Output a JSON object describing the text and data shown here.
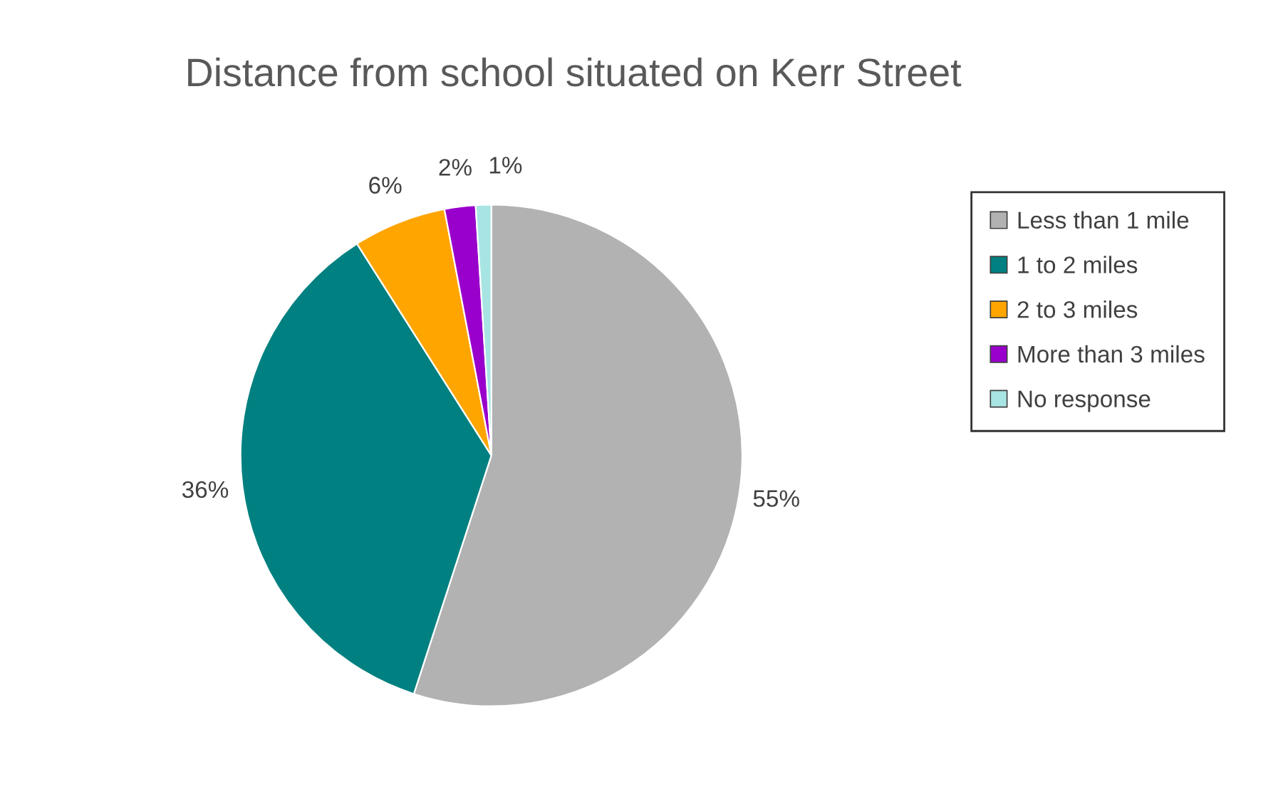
{
  "chart_data": {
    "type": "pie",
    "title": "Distance from school situated on Kerr Street",
    "categories": [
      "Less than 1 mile",
      "1 to 2 miles",
      "2 to 3 miles",
      "More than 3 miles",
      "No response"
    ],
    "values": [
      55,
      36,
      6,
      2,
      1
    ],
    "colors": [
      "#b2b2b2",
      "#008080",
      "#ffa500",
      "#9900cc",
      "#a8e4e4"
    ],
    "value_labels": [
      "55%",
      "36%",
      "6%",
      "2%",
      "1%"
    ],
    "legend": "right"
  }
}
